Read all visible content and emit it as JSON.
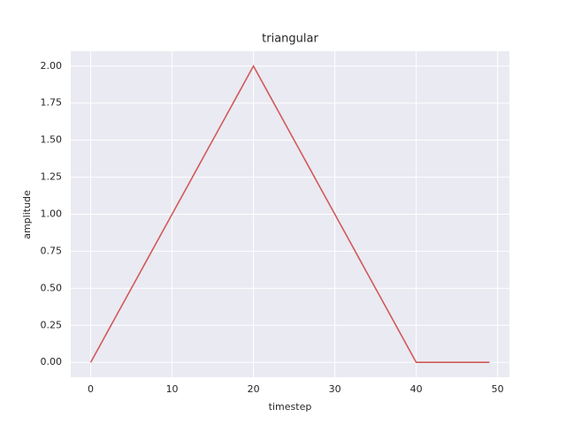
{
  "chart_data": {
    "type": "line",
    "title": "triangular",
    "xlabel": "timestep",
    "ylabel": "amplitude",
    "x": [
      0,
      1,
      2,
      3,
      4,
      5,
      6,
      7,
      8,
      9,
      10,
      11,
      12,
      13,
      14,
      15,
      16,
      17,
      18,
      19,
      20,
      21,
      22,
      23,
      24,
      25,
      26,
      27,
      28,
      29,
      30,
      31,
      32,
      33,
      34,
      35,
      36,
      37,
      38,
      39,
      40,
      41,
      42,
      43,
      44,
      45,
      46,
      47,
      48,
      49
    ],
    "series": [
      {
        "name": "triangular",
        "color": "#d05a5a",
        "values": [
          0,
          0.1,
          0.2,
          0.3,
          0.4,
          0.5,
          0.6,
          0.7,
          0.8,
          0.9,
          1.0,
          1.1,
          1.2,
          1.3,
          1.4,
          1.5,
          1.6,
          1.7,
          1.8,
          1.9,
          2.0,
          1.9,
          1.8,
          1.7,
          1.6,
          1.5,
          1.4,
          1.3,
          1.2,
          1.1,
          1.0,
          0.9,
          0.8,
          0.7,
          0.6,
          0.5,
          0.4,
          0.3,
          0.2,
          0.1,
          0,
          0,
          0,
          0,
          0,
          0,
          0,
          0,
          0,
          0
        ]
      }
    ],
    "xlim": [
      -2.45,
      51.45
    ],
    "ylim": [
      -0.1,
      2.1
    ],
    "xticks": [
      0,
      10,
      20,
      30,
      40,
      50
    ],
    "yticks": [
      {
        "value": 0,
        "label": "0.00"
      },
      {
        "value": 0.25,
        "label": "0.25"
      },
      {
        "value": 0.5,
        "label": "0.50"
      },
      {
        "value": 0.75,
        "label": "0.75"
      },
      {
        "value": 1,
        "label": "1.00"
      },
      {
        "value": 1.25,
        "label": "1.25"
      },
      {
        "value": 1.5,
        "label": "1.50"
      },
      {
        "value": 1.75,
        "label": "1.75"
      },
      {
        "value": 2,
        "label": "2.00"
      }
    ],
    "grid": true
  }
}
